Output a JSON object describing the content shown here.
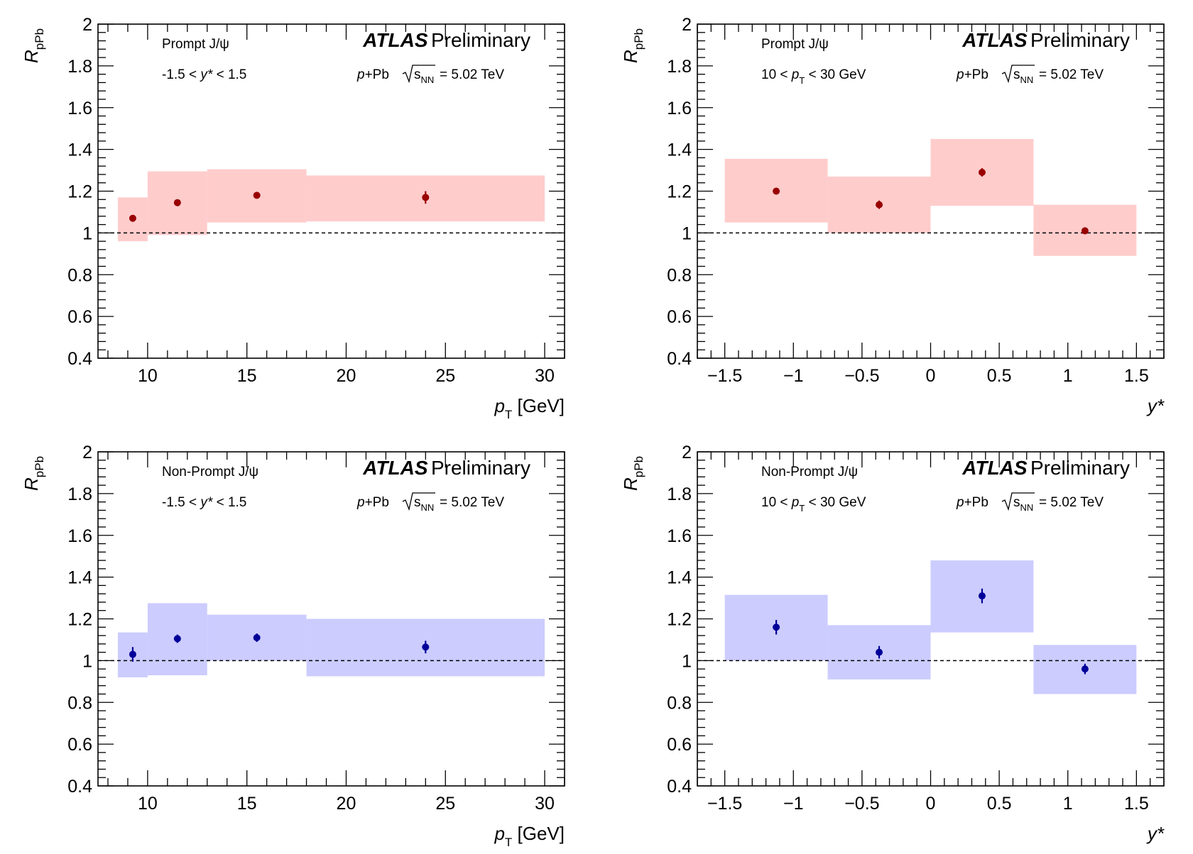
{
  "common": {
    "experiment": "ATLAS",
    "status": "Preliminary",
    "system_label": "p+Pb",
    "energy_label": "= 5.02 TeV",
    "ylabel": "R",
    "ylabel_sub": "pPb"
  },
  "colors": {
    "prompt_band": "#ffcccc",
    "prompt_marker": "#990000",
    "nonprompt_band": "#ccccff",
    "nonprompt_marker": "#000099"
  },
  "chart_data": [
    {
      "id": "prompt-pt",
      "type": "scatter",
      "species": "prompt",
      "title": "Prompt J/ψ",
      "selection": "-1.5 < y* < 1.5",
      "xlabel": "p_T [GeV]",
      "ylabel": "R_pPb",
      "xlim": [
        7.5,
        31
      ],
      "ylim": [
        0.4,
        2
      ],
      "xticks": [
        10,
        15,
        20,
        25,
        30
      ],
      "yticks": [
        0.4,
        0.6,
        0.8,
        1,
        1.2,
        1.4,
        1.6,
        1.8,
        2
      ],
      "reference_line": 1,
      "points": [
        {
          "x": 9.25,
          "xlo": 8.5,
          "xhi": 10,
          "y": 1.07,
          "stat": 0.01,
          "syslo": 0.96,
          "syshi": 1.17
        },
        {
          "x": 11.5,
          "xlo": 10,
          "xhi": 13,
          "y": 1.145,
          "stat": 0.01,
          "syslo": 0.99,
          "syshi": 1.295
        },
        {
          "x": 15.5,
          "xlo": 13,
          "xhi": 18,
          "y": 1.18,
          "stat": 0.015,
          "syslo": 1.05,
          "syshi": 1.305
        },
        {
          "x": 24,
          "xlo": 18,
          "xhi": 30,
          "y": 1.17,
          "stat": 0.03,
          "syslo": 1.055,
          "syshi": 1.275
        }
      ]
    },
    {
      "id": "prompt-y",
      "type": "scatter",
      "species": "prompt",
      "title": "Prompt J/ψ",
      "selection": "10 < p_T < 30 GeV",
      "xlabel": "y*",
      "ylabel": "R_pPb",
      "xlim": [
        -1.7,
        1.7
      ],
      "ylim": [
        0.4,
        2
      ],
      "xticks": [
        -1.5,
        -1,
        -0.5,
        0,
        0.5,
        1,
        1.5
      ],
      "yticks": [
        0.4,
        0.6,
        0.8,
        1,
        1.2,
        1.4,
        1.6,
        1.8,
        2
      ],
      "reference_line": 1,
      "points": [
        {
          "x": -1.125,
          "xlo": -1.5,
          "xhi": -0.75,
          "y": 1.2,
          "stat": 0.015,
          "syslo": 1.05,
          "syshi": 1.355
        },
        {
          "x": -0.375,
          "xlo": -0.75,
          "xhi": 0,
          "y": 1.135,
          "stat": 0.02,
          "syslo": 1.0,
          "syshi": 1.27
        },
        {
          "x": 0.375,
          "xlo": 0,
          "xhi": 0.75,
          "y": 1.29,
          "stat": 0.02,
          "syslo": 1.13,
          "syshi": 1.45
        },
        {
          "x": 1.125,
          "xlo": 0.75,
          "xhi": 1.5,
          "y": 1.01,
          "stat": 0.01,
          "syslo": 0.89,
          "syshi": 1.135
        }
      ]
    },
    {
      "id": "nonprompt-pt",
      "type": "scatter",
      "species": "nonprompt",
      "title": "Non-Prompt J/ψ",
      "selection": "-1.5 < y* < 1.5",
      "xlabel": "p_T [GeV]",
      "ylabel": "R_pPb",
      "xlim": [
        7.5,
        31
      ],
      "ylim": [
        0.4,
        2
      ],
      "xticks": [
        10,
        15,
        20,
        25,
        30
      ],
      "yticks": [
        0.4,
        0.6,
        0.8,
        1,
        1.2,
        1.4,
        1.6,
        1.8,
        2
      ],
      "reference_line": 1,
      "points": [
        {
          "x": 9.25,
          "xlo": 8.5,
          "xhi": 10,
          "y": 1.03,
          "stat": 0.035,
          "syslo": 0.92,
          "syshi": 1.135
        },
        {
          "x": 11.5,
          "xlo": 10,
          "xhi": 13,
          "y": 1.105,
          "stat": 0.02,
          "syslo": 0.93,
          "syshi": 1.275
        },
        {
          "x": 15.5,
          "xlo": 13,
          "xhi": 18,
          "y": 1.11,
          "stat": 0.02,
          "syslo": 1.0,
          "syshi": 1.22
        },
        {
          "x": 24,
          "xlo": 18,
          "xhi": 30,
          "y": 1.065,
          "stat": 0.03,
          "syslo": 0.925,
          "syshi": 1.2
        }
      ]
    },
    {
      "id": "nonprompt-y",
      "type": "scatter",
      "species": "nonprompt",
      "title": "Non-Prompt J/ψ",
      "selection": "10 < p_T < 30 GeV",
      "xlabel": "y*",
      "ylabel": "R_pPb",
      "xlim": [
        -1.7,
        1.7
      ],
      "ylim": [
        0.4,
        2
      ],
      "xticks": [
        -1.5,
        -1,
        -0.5,
        0,
        0.5,
        1,
        1.5
      ],
      "yticks": [
        0.4,
        0.6,
        0.8,
        1,
        1.2,
        1.4,
        1.6,
        1.8,
        2
      ],
      "reference_line": 1,
      "points": [
        {
          "x": -1.125,
          "xlo": -1.5,
          "xhi": -0.75,
          "y": 1.16,
          "stat": 0.035,
          "syslo": 1.0,
          "syshi": 1.315
        },
        {
          "x": -0.375,
          "xlo": -0.75,
          "xhi": 0,
          "y": 1.04,
          "stat": 0.03,
          "syslo": 0.91,
          "syshi": 1.17
        },
        {
          "x": 0.375,
          "xlo": 0,
          "xhi": 0.75,
          "y": 1.31,
          "stat": 0.035,
          "syslo": 1.135,
          "syshi": 1.48
        },
        {
          "x": 1.125,
          "xlo": 0.75,
          "xhi": 1.5,
          "y": 0.96,
          "stat": 0.025,
          "syslo": 0.84,
          "syshi": 1.075
        }
      ]
    }
  ]
}
